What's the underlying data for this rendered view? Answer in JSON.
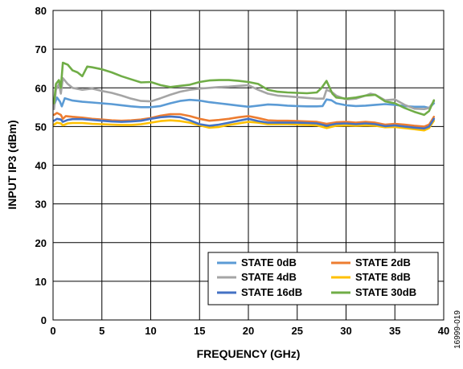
{
  "chart_data": {
    "type": "line",
    "xlabel": "FREQUENCY (GHz)",
    "ylabel": "INPUT IP3 (dBm)",
    "xlim": [
      0,
      40
    ],
    "ylim": [
      0,
      80
    ],
    "x_ticks": [
      "0",
      "5",
      "10",
      "15",
      "20",
      "25",
      "30",
      "35",
      "40"
    ],
    "y_ticks": [
      "0",
      "10",
      "20",
      "30",
      "40",
      "50",
      "60",
      "70",
      "80"
    ],
    "grid": true,
    "legend_position": "bottom-right",
    "figure_id": "16999-019",
    "series": [
      {
        "name": "STATE 0dB",
        "color": "#5b9bd5",
        "points": [
          [
            0.1,
            55.5
          ],
          [
            0.4,
            57.5
          ],
          [
            0.7,
            56.5
          ],
          [
            0.9,
            55.2
          ],
          [
            1.2,
            57.3
          ],
          [
            2,
            56.7
          ],
          [
            3,
            56.4
          ],
          [
            4,
            56.2
          ],
          [
            5,
            56
          ],
          [
            6,
            55.8
          ],
          [
            7,
            55.5
          ],
          [
            8,
            55.2
          ],
          [
            9,
            55
          ],
          [
            10,
            55
          ],
          [
            11,
            55.3
          ],
          [
            12,
            56
          ],
          [
            13,
            56.6
          ],
          [
            14,
            56.9
          ],
          [
            15,
            56.7
          ],
          [
            16,
            56.3
          ],
          [
            17,
            56
          ],
          [
            18,
            55.7
          ],
          [
            19,
            55.4
          ],
          [
            20,
            55.1
          ],
          [
            21,
            55.4
          ],
          [
            22,
            55.7
          ],
          [
            23,
            55.6
          ],
          [
            24,
            55.4
          ],
          [
            25,
            55.3
          ],
          [
            26,
            55.2
          ],
          [
            27,
            55.2
          ],
          [
            27.6,
            55.3
          ],
          [
            28,
            57
          ],
          [
            28.5,
            56.8
          ],
          [
            29,
            56
          ],
          [
            30,
            55.5
          ],
          [
            31,
            55.3
          ],
          [
            32,
            55.4
          ],
          [
            33,
            55.6
          ],
          [
            34,
            55.8
          ],
          [
            35,
            55.6
          ],
          [
            36,
            55.3
          ],
          [
            37,
            55.1
          ],
          [
            38,
            55.1
          ],
          [
            38.5,
            54.8
          ],
          [
            39,
            56
          ]
        ]
      },
      {
        "name": "STATE 2dB",
        "color": "#ed7d31",
        "points": [
          [
            0.1,
            53
          ],
          [
            0.4,
            53.5
          ],
          [
            0.8,
            53
          ],
          [
            1,
            52
          ],
          [
            1.3,
            52.7
          ],
          [
            2,
            52.5
          ],
          [
            3,
            52.3
          ],
          [
            4,
            52
          ],
          [
            5,
            51.8
          ],
          [
            6,
            51.6
          ],
          [
            7,
            51.5
          ],
          [
            8,
            51.6
          ],
          [
            9,
            51.8
          ],
          [
            10,
            52.2
          ],
          [
            11,
            52.8
          ],
          [
            12,
            53.2
          ],
          [
            13,
            53.2
          ],
          [
            14,
            52.7
          ],
          [
            15,
            52
          ],
          [
            16,
            51.5
          ],
          [
            17,
            51.7
          ],
          [
            18,
            52
          ],
          [
            19,
            52.4
          ],
          [
            20,
            52.7
          ],
          [
            21,
            52.2
          ],
          [
            22,
            51.6
          ],
          [
            23,
            51.5
          ],
          [
            24,
            51.5
          ],
          [
            25,
            51.4
          ],
          [
            26,
            51.3
          ],
          [
            27,
            51.2
          ],
          [
            28,
            50.7
          ],
          [
            29,
            51.1
          ],
          [
            30,
            51.2
          ],
          [
            31,
            51
          ],
          [
            32,
            51.2
          ],
          [
            33,
            51
          ],
          [
            34,
            50.5
          ],
          [
            35,
            50.7
          ],
          [
            36,
            50.5
          ],
          [
            37,
            50.2
          ],
          [
            38,
            50
          ],
          [
            38.5,
            50.5
          ],
          [
            39,
            52.5
          ]
        ]
      },
      {
        "name": "STATE 4dB",
        "color": "#a5a5a5",
        "points": [
          [
            0.1,
            54.5
          ],
          [
            0.3,
            59.5
          ],
          [
            0.6,
            61
          ],
          [
            0.8,
            58.5
          ],
          [
            1,
            62.5
          ],
          [
            1.5,
            61
          ],
          [
            2,
            60
          ],
          [
            3,
            59.5
          ],
          [
            4,
            59.8
          ],
          [
            5,
            59.2
          ],
          [
            6,
            58.7
          ],
          [
            7,
            58
          ],
          [
            8,
            57.2
          ],
          [
            9,
            56.6
          ],
          [
            10,
            56.5
          ],
          [
            11,
            57.3
          ],
          [
            12,
            58.2
          ],
          [
            13,
            59
          ],
          [
            14,
            59.5
          ],
          [
            15,
            59.8
          ],
          [
            16,
            60
          ],
          [
            17,
            60.2
          ],
          [
            18,
            60.3
          ],
          [
            19,
            60.5
          ],
          [
            20,
            60.7
          ],
          [
            21,
            59.5
          ],
          [
            22,
            58.5
          ],
          [
            23,
            58
          ],
          [
            24,
            57.8
          ],
          [
            25,
            57.6
          ],
          [
            26,
            57.4
          ],
          [
            27,
            57.2
          ],
          [
            27.7,
            57.2
          ],
          [
            28,
            59.5
          ],
          [
            28.6,
            58.8
          ],
          [
            29,
            58
          ],
          [
            30,
            57
          ],
          [
            31,
            57.2
          ],
          [
            32,
            58
          ],
          [
            32.5,
            58.5
          ],
          [
            33,
            58.2
          ],
          [
            34,
            56.8
          ],
          [
            35,
            57
          ],
          [
            36,
            55.6
          ],
          [
            37,
            54.6
          ],
          [
            38,
            54.5
          ],
          [
            38.5,
            54.8
          ],
          [
            39,
            56.5
          ]
        ]
      },
      {
        "name": "STATE 8dB",
        "color": "#ffc000",
        "points": [
          [
            0.1,
            50.5
          ],
          [
            0.4,
            51
          ],
          [
            0.8,
            50.8
          ],
          [
            1,
            50.3
          ],
          [
            1.5,
            50.8
          ],
          [
            2,
            50.9
          ],
          [
            3,
            50.9
          ],
          [
            4,
            50.7
          ],
          [
            5,
            50.6
          ],
          [
            6,
            50.5
          ],
          [
            7,
            50.4
          ],
          [
            8,
            50.4
          ],
          [
            9,
            50.6
          ],
          [
            10,
            51
          ],
          [
            11,
            51.4
          ],
          [
            12,
            51.6
          ],
          [
            13,
            51.4
          ],
          [
            14,
            51
          ],
          [
            15,
            50.3
          ],
          [
            16,
            49.7
          ],
          [
            17,
            49.9
          ],
          [
            18,
            50.4
          ],
          [
            19,
            50.8
          ],
          [
            20,
            51.2
          ],
          [
            21,
            51
          ],
          [
            22,
            50.6
          ],
          [
            23,
            50.6
          ],
          [
            24,
            50.6
          ],
          [
            25,
            50.5
          ],
          [
            26,
            50.4
          ],
          [
            27,
            50.3
          ],
          [
            28,
            49.6
          ],
          [
            29,
            50.2
          ],
          [
            30,
            50.3
          ],
          [
            31,
            50.2
          ],
          [
            32,
            50.3
          ],
          [
            33,
            50.2
          ],
          [
            34,
            49.8
          ],
          [
            35,
            49.9
          ],
          [
            36,
            49.6
          ],
          [
            37,
            49.3
          ],
          [
            38,
            49
          ],
          [
            38.5,
            49.6
          ],
          [
            39,
            51.5
          ]
        ]
      },
      {
        "name": "STATE 16dB",
        "color": "#4472c4",
        "points": [
          [
            0.1,
            51.5
          ],
          [
            0.4,
            52
          ],
          [
            0.8,
            51.8
          ],
          [
            1,
            51.2
          ],
          [
            1.5,
            51.7
          ],
          [
            2,
            51.9
          ],
          [
            3,
            51.9
          ],
          [
            4,
            51.7
          ],
          [
            5,
            51.5
          ],
          [
            6,
            51.3
          ],
          [
            7,
            51.2
          ],
          [
            8,
            51.3
          ],
          [
            9,
            51.5
          ],
          [
            10,
            52
          ],
          [
            11,
            52.4
          ],
          [
            12,
            52.6
          ],
          [
            13,
            52.4
          ],
          [
            14,
            51.6
          ],
          [
            15,
            50.6
          ],
          [
            16,
            50.2
          ],
          [
            17,
            50.5
          ],
          [
            18,
            51
          ],
          [
            19,
            51.5
          ],
          [
            20,
            52
          ],
          [
            21,
            51.4
          ],
          [
            22,
            51
          ],
          [
            23,
            51
          ],
          [
            24,
            51
          ],
          [
            25,
            51
          ],
          [
            26,
            50.9
          ],
          [
            27,
            50.8
          ],
          [
            28,
            50.2
          ],
          [
            29,
            50.7
          ],
          [
            30,
            50.8
          ],
          [
            31,
            50.6
          ],
          [
            32,
            50.8
          ],
          [
            33,
            50.6
          ],
          [
            34,
            50.1
          ],
          [
            35,
            50.3
          ],
          [
            36,
            50
          ],
          [
            37,
            49.7
          ],
          [
            38,
            49.5
          ],
          [
            38.5,
            50
          ],
          [
            39,
            52
          ]
        ]
      },
      {
        "name": "STATE 30dB",
        "color": "#70ad47",
        "points": [
          [
            0.1,
            56
          ],
          [
            0.3,
            61
          ],
          [
            0.6,
            62
          ],
          [
            0.8,
            60
          ],
          [
            1,
            66.5
          ],
          [
            1.5,
            66
          ],
          [
            2,
            64.5
          ],
          [
            2.5,
            64
          ],
          [
            3,
            63
          ],
          [
            3.5,
            65.5
          ],
          [
            4,
            65.3
          ],
          [
            5,
            64.8
          ],
          [
            6,
            64
          ],
          [
            7,
            63
          ],
          [
            8,
            62.2
          ],
          [
            9,
            61.4
          ],
          [
            10,
            61.5
          ],
          [
            11,
            60.7
          ],
          [
            12,
            60.2
          ],
          [
            13,
            60.5
          ],
          [
            14,
            60.8
          ],
          [
            15,
            61.5
          ],
          [
            16,
            61.9
          ],
          [
            17,
            62
          ],
          [
            18,
            62
          ],
          [
            19,
            61.8
          ],
          [
            20,
            61.5
          ],
          [
            21,
            61
          ],
          [
            22,
            59.5
          ],
          [
            23,
            59
          ],
          [
            24,
            58.8
          ],
          [
            25,
            58.7
          ],
          [
            26,
            58.6
          ],
          [
            27,
            58.8
          ],
          [
            27.5,
            60
          ],
          [
            28,
            61.8
          ],
          [
            28.6,
            58.5
          ],
          [
            29,
            57.5
          ],
          [
            30,
            57.2
          ],
          [
            31,
            57.5
          ],
          [
            32,
            58
          ],
          [
            33,
            58.2
          ],
          [
            34,
            56.5
          ],
          [
            35,
            56
          ],
          [
            36,
            54.8
          ],
          [
            37,
            53.8
          ],
          [
            38,
            53
          ],
          [
            38.5,
            54
          ],
          [
            39,
            56.8
          ]
        ]
      }
    ]
  }
}
